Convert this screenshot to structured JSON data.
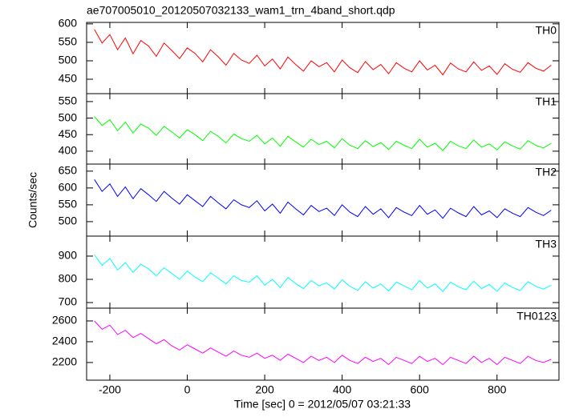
{
  "title": "ae707005010_20120507032133_wam1_trn_4band_short.qdp",
  "y_label": "Counts/sec",
  "x_label": "Time [sec] 0 = 2012/05/07 03:21:33",
  "chart_data": [
    {
      "type": "line",
      "x": [
        -240,
        -220,
        -200,
        -180,
        -160,
        -140,
        -120,
        -100,
        -80,
        -60,
        -40,
        -20,
        0,
        20,
        40,
        60,
        80,
        100,
        120,
        140,
        160,
        180,
        200,
        220,
        240,
        260,
        280,
        300,
        320,
        340,
        360,
        380,
        400,
        420,
        440,
        460,
        480,
        500,
        520,
        540,
        560,
        580,
        600,
        620,
        640,
        660,
        680,
        700,
        720,
        740,
        760,
        780,
        800,
        820,
        840,
        860,
        880,
        900,
        920,
        940
      ],
      "series": [
        {
          "name": "TH0",
          "color": "#ff0000",
          "values": [
            585,
            548,
            571,
            530,
            562,
            519,
            555,
            540,
            512,
            548,
            528,
            506,
            535,
            520,
            497,
            530,
            511,
            488,
            520,
            502,
            493,
            515,
            486,
            505,
            478,
            510,
            490,
            472,
            500,
            484,
            495,
            470,
            502,
            481,
            468,
            498,
            476,
            490,
            465,
            495,
            480,
            470,
            500,
            475,
            488,
            462,
            494,
            478,
            470,
            497,
            474,
            486,
            463,
            492,
            477,
            469,
            495,
            480,
            472,
            488
          ]
        }
      ],
      "ylim": [
        411,
        604
      ],
      "yticks": [
        450,
        500,
        550,
        600
      ]
    },
    {
      "type": "line",
      "x": [
        -240,
        -220,
        -200,
        -180,
        -160,
        -140,
        -120,
        -100,
        -80,
        -60,
        -40,
        -20,
        0,
        20,
        40,
        60,
        80,
        100,
        120,
        140,
        160,
        180,
        200,
        220,
        240,
        260,
        280,
        300,
        320,
        340,
        360,
        380,
        400,
        420,
        440,
        460,
        480,
        500,
        520,
        540,
        560,
        580,
        600,
        620,
        640,
        660,
        680,
        700,
        720,
        740,
        760,
        780,
        800,
        820,
        840,
        860,
        880,
        900,
        920,
        940
      ],
      "series": [
        {
          "name": "TH1",
          "color": "#00ff00",
          "values": [
            505,
            478,
            495,
            462,
            488,
            455,
            482,
            470,
            448,
            475,
            458,
            440,
            465,
            450,
            432,
            460,
            445,
            425,
            452,
            438,
            430,
            448,
            422,
            440,
            415,
            445,
            428,
            412,
            436,
            420,
            430,
            410,
            438,
            418,
            408,
            432,
            414,
            426,
            405,
            430,
            418,
            408,
            436,
            412,
            424,
            402,
            430,
            416,
            408,
            434,
            412,
            422,
            404,
            428,
            416,
            406,
            432,
            418,
            410,
            424
          ]
        }
      ],
      "ylim": [
        361,
        574
      ],
      "yticks": [
        400,
        450,
        500,
        550
      ]
    },
    {
      "type": "line",
      "x": [
        -240,
        -220,
        -200,
        -180,
        -160,
        -140,
        -120,
        -100,
        -80,
        -60,
        -40,
        -20,
        0,
        20,
        40,
        60,
        80,
        100,
        120,
        140,
        160,
        180,
        200,
        220,
        240,
        260,
        280,
        300,
        320,
        340,
        360,
        380,
        400,
        420,
        440,
        460,
        480,
        500,
        520,
        540,
        560,
        580,
        600,
        620,
        640,
        660,
        680,
        700,
        720,
        740,
        760,
        780,
        800,
        820,
        840,
        860,
        880,
        900,
        920,
        940
      ],
      "series": [
        {
          "name": "TH2",
          "color": "#0000ff",
          "values": [
            625,
            590,
            612,
            575,
            603,
            568,
            598,
            580,
            560,
            590,
            570,
            552,
            580,
            562,
            545,
            575,
            556,
            538,
            565,
            550,
            542,
            562,
            532,
            552,
            525,
            558,
            538,
            520,
            548,
            530,
            540,
            518,
            550,
            528,
            515,
            545,
            522,
            538,
            512,
            542,
            528,
            518,
            548,
            522,
            535,
            510,
            540,
            526,
            515,
            545,
            520,
            532,
            512,
            538,
            525,
            515,
            542,
            528,
            518,
            534
          ]
        }
      ],
      "ylim": [
        457,
        671
      ],
      "yticks": [
        500,
        550,
        600,
        650
      ]
    },
    {
      "type": "line",
      "x": [
        -240,
        -220,
        -200,
        -180,
        -160,
        -140,
        -120,
        -100,
        -80,
        -60,
        -40,
        -20,
        0,
        20,
        40,
        60,
        80,
        100,
        120,
        140,
        160,
        180,
        200,
        220,
        240,
        260,
        280,
        300,
        320,
        340,
        360,
        380,
        400,
        420,
        440,
        460,
        480,
        500,
        520,
        540,
        560,
        580,
        600,
        620,
        640,
        660,
        680,
        700,
        720,
        740,
        760,
        780,
        800,
        820,
        840,
        860,
        880,
        900,
        920,
        940
      ],
      "series": [
        {
          "name": "TH3",
          "color": "#00ffff",
          "values": [
            905,
            860,
            890,
            840,
            872,
            830,
            865,
            845,
            815,
            850,
            825,
            800,
            835,
            810,
            790,
            828,
            805,
            780,
            815,
            795,
            788,
            815,
            775,
            800,
            765,
            808,
            782,
            760,
            795,
            772,
            785,
            758,
            798,
            770,
            752,
            790,
            762,
            780,
            750,
            788,
            772,
            755,
            795,
            762,
            780,
            748,
            788,
            768,
            755,
            792,
            760,
            778,
            748,
            785,
            765,
            752,
            790,
            770,
            758,
            775
          ]
        }
      ],
      "ylim": [
        676,
        986
      ],
      "yticks": [
        700,
        800,
        900
      ]
    },
    {
      "type": "line",
      "x": [
        -240,
        -220,
        -200,
        -180,
        -160,
        -140,
        -120,
        -100,
        -80,
        -60,
        -40,
        -20,
        0,
        20,
        40,
        60,
        80,
        100,
        120,
        140,
        160,
        180,
        200,
        220,
        240,
        260,
        280,
        300,
        320,
        340,
        360,
        380,
        400,
        420,
        440,
        460,
        480,
        500,
        520,
        540,
        560,
        580,
        600,
        620,
        640,
        660,
        680,
        700,
        720,
        740,
        760,
        780,
        800,
        820,
        840,
        860,
        880,
        900,
        920,
        940
      ],
      "series": [
        {
          "name": "TH0123",
          "color": "#ff00ff",
          "values": [
            2600,
            2520,
            2560,
            2470,
            2510,
            2440,
            2480,
            2430,
            2380,
            2420,
            2360,
            2320,
            2370,
            2330,
            2290,
            2340,
            2300,
            2260,
            2310,
            2270,
            2250,
            2290,
            2240,
            2270,
            2220,
            2280,
            2240,
            2200,
            2260,
            2220,
            2250,
            2200,
            2270,
            2220,
            2190,
            2250,
            2210,
            2240,
            2180,
            2250,
            2220,
            2190,
            2260,
            2210,
            2240,
            2180,
            2250,
            2220,
            2190,
            2260,
            2200,
            2240,
            2180,
            2250,
            2220,
            2190,
            2260,
            2220,
            2200,
            2230
          ]
        }
      ],
      "ylim": [
        2030,
        2723
      ],
      "yticks": [
        2200,
        2400,
        2600
      ],
      "xlim": [
        -260,
        960
      ],
      "xticks": [
        -200,
        0,
        200,
        400,
        600,
        800
      ]
    }
  ]
}
